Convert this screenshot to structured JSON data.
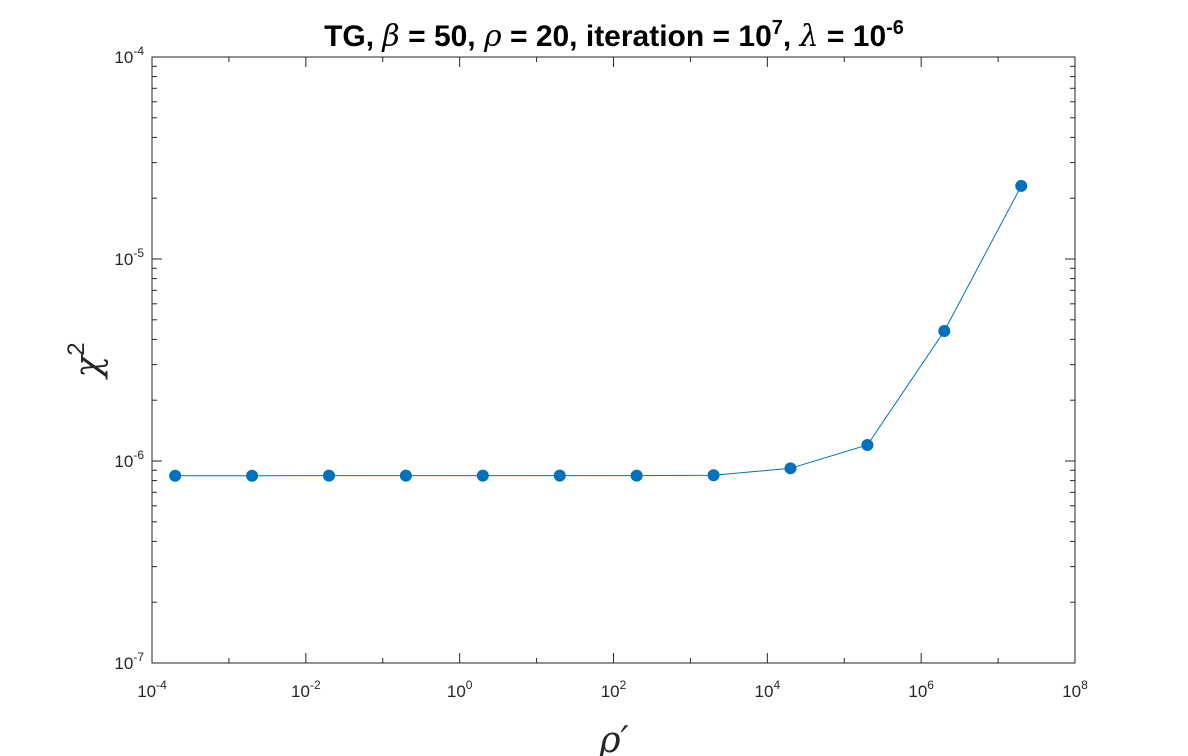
{
  "chart_data": {
    "type": "line",
    "title_parts": {
      "prefix": "TG, ",
      "beta_symbol": "β",
      "beta_text": " = 50, ",
      "rho_symbol": "ρ",
      "rho_text": " = 20, iteration = 10",
      "iteration_exp": "7",
      "sep": ", ",
      "lambda_symbol": "λ",
      "lambda_text": " = 10",
      "lambda_exp": "-6"
    },
    "xlabel": "ρ′",
    "ylabel_base": "χ",
    "ylabel_exp": "2",
    "xscale": "log",
    "yscale": "log",
    "xlim": [
      0.0001,
      100000000
    ],
    "ylim": [
      1e-07,
      0.0001
    ],
    "x_ticks": [
      {
        "base": "10",
        "exp": "-4"
      },
      {
        "base": "10",
        "exp": "-2"
      },
      {
        "base": "10",
        "exp": "0"
      },
      {
        "base": "10",
        "exp": "2"
      },
      {
        "base": "10",
        "exp": "4"
      },
      {
        "base": "10",
        "exp": "6"
      },
      {
        "base": "10",
        "exp": "8"
      }
    ],
    "y_ticks": [
      {
        "base": "10",
        "exp": "-7"
      },
      {
        "base": "10",
        "exp": "-6"
      },
      {
        "base": "10",
        "exp": "-5"
      },
      {
        "base": "10",
        "exp": "-4"
      }
    ],
    "grid": false,
    "color": "#0072BD",
    "series": [
      {
        "x": [
          0.0002,
          0.002,
          0.02,
          0.2,
          2,
          20,
          200,
          2000,
          20000,
          200000,
          2000000,
          20000000
        ],
        "y": [
          8.45e-07,
          8.45e-07,
          8.46e-07,
          8.46e-07,
          8.46e-07,
          8.46e-07,
          8.46e-07,
          8.5e-07,
          9.2e-07,
          1.2e-06,
          4.4e-06,
          2.3e-05
        ]
      }
    ]
  }
}
